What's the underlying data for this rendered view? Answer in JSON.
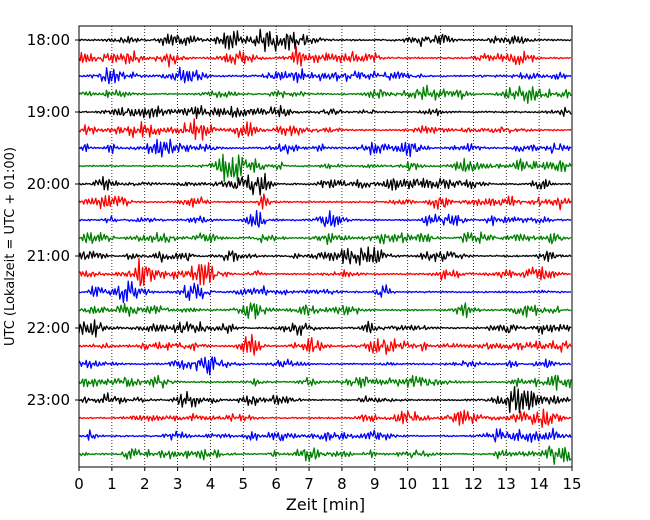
{
  "chart_data": {
    "type": "line",
    "title": "",
    "xlabel": "Zeit  [min]",
    "ylabel": "UTC (Lokalzeit = UTC + 01:00)",
    "xlim": [
      0,
      15
    ],
    "x_ticks": [
      "0",
      "1",
      "2",
      "3",
      "4",
      "5",
      "6",
      "7",
      "8",
      "9",
      "10",
      "11",
      "12",
      "13",
      "14",
      "15"
    ],
    "y_tick_labels": [
      "18:00",
      "19:00",
      "20:00",
      "21:00",
      "22:00",
      "23:00"
    ],
    "row_interval_minutes": 15,
    "rows": [
      {
        "start": "18:00",
        "color": "#000000"
      },
      {
        "start": "18:15",
        "color": "#ff0000"
      },
      {
        "start": "18:30",
        "color": "#0000ff"
      },
      {
        "start": "18:45",
        "color": "#008000"
      },
      {
        "start": "19:00",
        "color": "#000000"
      },
      {
        "start": "19:15",
        "color": "#ff0000"
      },
      {
        "start": "19:30",
        "color": "#0000ff"
      },
      {
        "start": "19:45",
        "color": "#008000"
      },
      {
        "start": "20:00",
        "color": "#000000"
      },
      {
        "start": "20:15",
        "color": "#ff0000"
      },
      {
        "start": "20:30",
        "color": "#0000ff"
      },
      {
        "start": "20:45",
        "color": "#008000"
      },
      {
        "start": "21:00",
        "color": "#000000"
      },
      {
        "start": "21:15",
        "color": "#ff0000"
      },
      {
        "start": "21:30",
        "color": "#0000ff"
      },
      {
        "start": "21:45",
        "color": "#008000"
      },
      {
        "start": "22:00",
        "color": "#000000"
      },
      {
        "start": "22:15",
        "color": "#ff0000"
      },
      {
        "start": "22:30",
        "color": "#0000ff"
      },
      {
        "start": "22:45",
        "color": "#008000"
      },
      {
        "start": "23:00",
        "color": "#000000"
      },
      {
        "start": "23:15",
        "color": "#ff0000"
      },
      {
        "start": "23:30",
        "color": "#0000ff"
      },
      {
        "start": "23:45",
        "color": "#008000"
      }
    ],
    "grid": "vertical dotted at each minute",
    "legend": "none"
  }
}
